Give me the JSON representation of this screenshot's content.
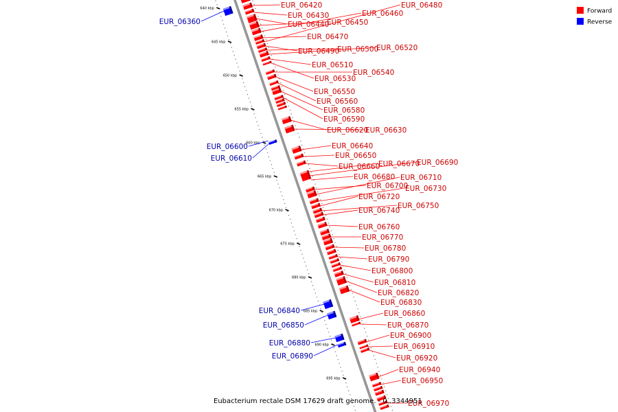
{
  "map": {
    "caption": "Eubacterium rectale DSM 17629 draft genome. - 0..3344951",
    "legend": [
      {
        "label": "Forward",
        "color": "#ff0000"
      },
      {
        "label": "Reverse",
        "color": "#0000ff"
      }
    ],
    "colors": {
      "forward": "#ff0000",
      "reverse": "#0000ff",
      "backbone": "#999999"
    },
    "ticks": [
      {
        "kbp": 640,
        "label": "640 kbp"
      },
      {
        "kbp": 645,
        "label": "645 kbp"
      },
      {
        "kbp": 650,
        "label": "650 kbp"
      },
      {
        "kbp": 655,
        "label": "655 kbp"
      },
      {
        "kbp": 660,
        "label": "660 kbp"
      },
      {
        "kbp": 665,
        "label": "665 kbp"
      },
      {
        "kbp": 670,
        "label": "670 kbp"
      },
      {
        "kbp": 675,
        "label": "675 kbp"
      },
      {
        "kbp": 680,
        "label": "680 kbp"
      },
      {
        "kbp": 685,
        "label": "685 kbp"
      },
      {
        "kbp": 690,
        "label": "690 kbp"
      },
      {
        "kbp": 695,
        "label": "695 kbp"
      }
    ],
    "genes": [
      {
        "name": "EUR_06360",
        "strand": "reverse"
      },
      {
        "name": "EUR_06420",
        "strand": "forward"
      },
      {
        "name": "EUR_06430",
        "strand": "forward"
      },
      {
        "name": "EUR_06440",
        "strand": "forward"
      },
      {
        "name": "EUR_06450",
        "strand": "forward"
      },
      {
        "name": "EUR_06460",
        "strand": "forward"
      },
      {
        "name": "EUR_06470",
        "strand": "forward"
      },
      {
        "name": "EUR_06480",
        "strand": "forward"
      },
      {
        "name": "EUR_06490",
        "strand": "forward"
      },
      {
        "name": "EUR_06500",
        "strand": "forward"
      },
      {
        "name": "EUR_06510",
        "strand": "forward"
      },
      {
        "name": "EUR_06520",
        "strand": "forward"
      },
      {
        "name": "EUR_06530",
        "strand": "forward"
      },
      {
        "name": "EUR_06540",
        "strand": "forward"
      },
      {
        "name": "EUR_06550",
        "strand": "forward"
      },
      {
        "name": "EUR_06560",
        "strand": "forward"
      },
      {
        "name": "EUR_06580",
        "strand": "forward"
      },
      {
        "name": "EUR_06590",
        "strand": "forward"
      },
      {
        "name": "EUR_06600",
        "strand": "reverse"
      },
      {
        "name": "EUR_06610",
        "strand": "reverse"
      },
      {
        "name": "EUR_06620",
        "strand": "forward"
      },
      {
        "name": "EUR_06630",
        "strand": "forward"
      },
      {
        "name": "EUR_06640",
        "strand": "forward"
      },
      {
        "name": "EUR_06650",
        "strand": "forward"
      },
      {
        "name": "EUR_06660",
        "strand": "forward"
      },
      {
        "name": "EUR_06670",
        "strand": "forward"
      },
      {
        "name": "EUR_06680",
        "strand": "forward"
      },
      {
        "name": "EUR_06690",
        "strand": "forward"
      },
      {
        "name": "EUR_06700",
        "strand": "forward"
      },
      {
        "name": "EUR_06710",
        "strand": "forward"
      },
      {
        "name": "EUR_06720",
        "strand": "forward"
      },
      {
        "name": "EUR_06730",
        "strand": "forward"
      },
      {
        "name": "EUR_06740",
        "strand": "forward"
      },
      {
        "name": "EUR_06750",
        "strand": "forward"
      },
      {
        "name": "EUR_06760",
        "strand": "forward"
      },
      {
        "name": "EUR_06770",
        "strand": "forward"
      },
      {
        "name": "EUR_06780",
        "strand": "forward"
      },
      {
        "name": "EUR_06790",
        "strand": "forward"
      },
      {
        "name": "EUR_06800",
        "strand": "forward"
      },
      {
        "name": "EUR_06810",
        "strand": "forward"
      },
      {
        "name": "EUR_06820",
        "strand": "forward"
      },
      {
        "name": "EUR_06830",
        "strand": "forward"
      },
      {
        "name": "EUR_06840",
        "strand": "reverse"
      },
      {
        "name": "EUR_06850",
        "strand": "reverse"
      },
      {
        "name": "EUR_06860",
        "strand": "forward"
      },
      {
        "name": "EUR_06870",
        "strand": "forward"
      },
      {
        "name": "EUR_06880",
        "strand": "reverse"
      },
      {
        "name": "EUR_06890",
        "strand": "reverse"
      },
      {
        "name": "EUR_06900",
        "strand": "forward"
      },
      {
        "name": "EUR_06910",
        "strand": "forward"
      },
      {
        "name": "EUR_06920",
        "strand": "forward"
      },
      {
        "name": "EUR_06940",
        "strand": "forward"
      },
      {
        "name": "EUR_06950",
        "strand": "forward"
      },
      {
        "name": "EUR_06970",
        "strand": "forward"
      }
    ]
  }
}
